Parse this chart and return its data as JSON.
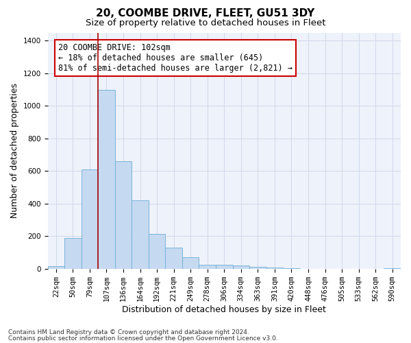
{
  "title": "20, COOMBE DRIVE, FLEET, GU51 3DY",
  "subtitle": "Size of property relative to detached houses in Fleet",
  "xlabel": "Distribution of detached houses by size in Fleet",
  "ylabel": "Number of detached properties",
  "categories": [
    "22sqm",
    "50sqm",
    "79sqm",
    "107sqm",
    "136sqm",
    "164sqm",
    "192sqm",
    "221sqm",
    "249sqm",
    "278sqm",
    "306sqm",
    "334sqm",
    "363sqm",
    "391sqm",
    "420sqm",
    "448sqm",
    "476sqm",
    "505sqm",
    "533sqm",
    "562sqm",
    "590sqm"
  ],
  "values": [
    15,
    190,
    610,
    1100,
    660,
    420,
    215,
    130,
    70,
    25,
    25,
    20,
    10,
    7,
    3,
    0,
    0,
    0,
    0,
    0,
    5
  ],
  "bar_color": "#c5d9f0",
  "bar_edge_color": "#6baed6",
  "vline_x": 2.5,
  "vline_color": "#aa0000",
  "annotation_text": "20 COOMBE DRIVE: 102sqm\n← 18% of detached houses are smaller (645)\n81% of semi-detached houses are larger (2,821) →",
  "annotation_box_facecolor": "#ffffff",
  "annotation_box_edgecolor": "#cc0000",
  "ylim": [
    0,
    1450
  ],
  "yticks": [
    0,
    200,
    400,
    600,
    800,
    1000,
    1200,
    1400
  ],
  "grid_color": "#d0d8e8",
  "footer1": "Contains HM Land Registry data © Crown copyright and database right 2024.",
  "footer2": "Contains public sector information licensed under the Open Government Licence v3.0.",
  "plot_bg_color": "#eef2fa",
  "title_fontsize": 11,
  "subtitle_fontsize": 9.5,
  "axis_label_fontsize": 9,
  "tick_fontsize": 7.5,
  "annotation_fontsize": 8.5,
  "footer_fontsize": 6.5
}
